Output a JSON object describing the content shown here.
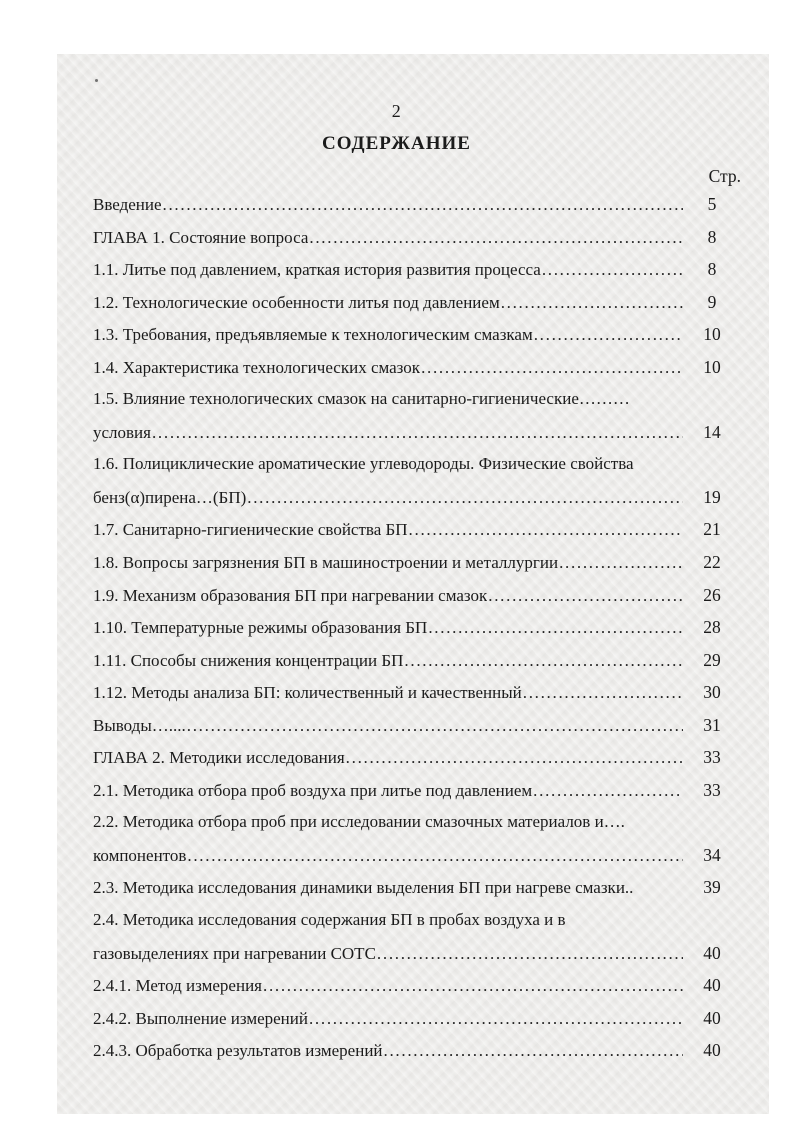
{
  "page": {
    "page_number": "2",
    "title": "СОДЕРЖАНИЕ",
    "column_header": "Стр."
  },
  "toc": {
    "rows": [
      {
        "text": "Введение",
        "dots": true,
        "page": "5"
      },
      {
        "text": "ГЛАВА 1. Состояние вопроса",
        "dots": true,
        "page": "8"
      },
      {
        "text": "1.1. Литье под давлением, краткая история развития процесса",
        "dots": true,
        "page": "8"
      },
      {
        "text": "1.2. Технологические особенности литья под давлением",
        "dots": true,
        "page": "9"
      },
      {
        "text": "1.3. Требования, предъявляемые к технологическим смазкам",
        "dots": true,
        "page": "10"
      },
      {
        "text": "1.4. Характеристика технологических смазок",
        "dots": true,
        "page": "10"
      },
      {
        "text": "1.5. Влияние технологических смазок на санитарно-гигиенические………",
        "dots": false,
        "page": ""
      },
      {
        "text": "условия",
        "dots": true,
        "page": "14"
      },
      {
        "text": "1.6. Полициклические ароматические углеводороды. Физические свойства",
        "dots": false,
        "page": ""
      },
      {
        "text": "бенз(α)пирена…(БП)",
        "dots": true,
        "page": "19"
      },
      {
        "text": "1.7. Санитарно-гигиенические свойства БП",
        "dots": true,
        "page": "21"
      },
      {
        "text": "1.8. Вопросы загрязнения БП в машиностроении и металлургии",
        "dots": true,
        "page": "22"
      },
      {
        "text": "1.9. Механизм образования БП при нагревании смазок",
        "dots": true,
        "page": "26"
      },
      {
        "text": "1.10. Температурные режимы образования БП",
        "dots": true,
        "page": "28"
      },
      {
        "text": "1.11. Способы снижения концентрации БП",
        "dots": true,
        "page": "29"
      },
      {
        "text": "1.12. Методы анализа БП: количественный и качественный",
        "dots": true,
        "page": "30"
      },
      {
        "text": "Выводы…....",
        "dots": true,
        "page": "31"
      },
      {
        "text": "ГЛАВА 2. Методики исследования",
        "dots": true,
        "page": "33"
      },
      {
        "text": "2.1. Методика отбора проб воздуха при литье под давлением",
        "dots": true,
        "page": "33"
      },
      {
        "text": "2.2. Методика отбора проб при исследовании смазочных материалов и….",
        "dots": false,
        "page": ""
      },
      {
        "text": "компонентов",
        "dots": true,
        "page": "34"
      },
      {
        "text": "2.3. Методика исследования динамики выделения БП при нагреве смазки..",
        "dots": false,
        "page": "39"
      },
      {
        "text": "2.4. Методика исследования содержания БП в пробах воздуха и в",
        "dots": false,
        "page": ""
      },
      {
        "text": "газовыделениях при нагревании СОТС",
        "dots": true,
        "page": "40"
      },
      {
        "text": "2.4.1. Метод измерения",
        "dots": true,
        "page": "40"
      },
      {
        "text": "2.4.2. Выполнение измерений",
        "dots": true,
        "page": "40"
      },
      {
        "text": "2.4.3. Обработка результатов измерений",
        "dots": true,
        "page": "40"
      }
    ]
  }
}
